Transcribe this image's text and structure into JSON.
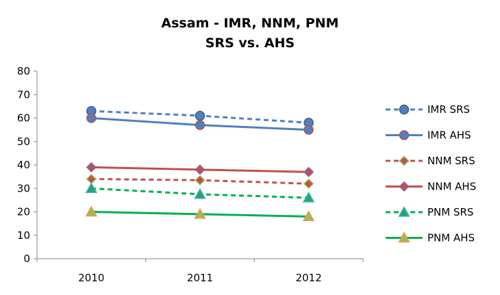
{
  "chart_data": {
    "type": "line",
    "title": "Assam - IMR, NNM, PNM",
    "subtitle": "SRS vs. AHS",
    "categories": [
      "2010",
      "2011",
      "2012"
    ],
    "ylim": [
      0,
      80
    ],
    "yticks": [
      0,
      10,
      20,
      30,
      40,
      50,
      60,
      70,
      80
    ],
    "grid": false,
    "legend_position": "right",
    "series": [
      {
        "name": "IMR SRS",
        "values": [
          63,
          61,
          58
        ],
        "color": "#4F81BD",
        "dash": "dashed",
        "marker": "circle",
        "marker_fill": "#4F81BD",
        "marker_stroke": "#385D8A"
      },
      {
        "name": "IMR AHS",
        "values": [
          60,
          57,
          55
        ],
        "color": "#4F81BD",
        "dash": "solid",
        "marker": "circle",
        "marker_fill": "#4F81BD",
        "marker_stroke": "#C0504D"
      },
      {
        "name": "NNM SRS",
        "values": [
          34,
          33.5,
          32
        ],
        "color": "#C0504D",
        "dash": "dashed",
        "marker": "diamond",
        "marker_fill": "#C0504D",
        "marker_stroke": "#9BBB59"
      },
      {
        "name": "NNM AHS",
        "values": [
          39,
          38,
          37
        ],
        "color": "#C0504D",
        "dash": "solid",
        "marker": "diamond",
        "marker_fill": "#C0504D",
        "marker_stroke": "#8064A2"
      },
      {
        "name": "PNM SRS",
        "values": [
          30,
          27.5,
          26
        ],
        "color": "#00B050",
        "dash": "dashed",
        "marker": "triangle",
        "marker_fill": "#1DAA6A",
        "marker_stroke": "#4BACC6"
      },
      {
        "name": "PNM AHS",
        "values": [
          20,
          19,
          18
        ],
        "color": "#00B050",
        "dash": "solid",
        "marker": "triangle",
        "marker_fill": "#9BBB59",
        "marker_stroke": "#F79646"
      }
    ]
  }
}
